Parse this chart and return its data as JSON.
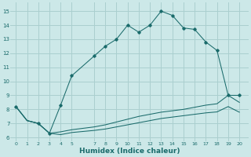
{
  "background_color": "#cce8e8",
  "grid_color": "#aacfcf",
  "line_color": "#1a6b6b",
  "main_x": [
    0,
    1,
    2,
    3,
    4,
    5,
    7,
    8,
    9,
    10,
    11,
    12,
    13,
    14,
    15,
    16,
    17,
    18,
    19,
    20
  ],
  "main_y": [
    8.2,
    7.2,
    7.0,
    6.3,
    8.3,
    10.4,
    11.8,
    12.5,
    13.0,
    14.0,
    13.5,
    14.0,
    15.0,
    14.7,
    13.8,
    13.7,
    12.8,
    12.2,
    9.0,
    9.0
  ],
  "line2_x": [
    0,
    1,
    2,
    3,
    4,
    5,
    7,
    8,
    9,
    10,
    11,
    12,
    13,
    14,
    15,
    16,
    17,
    18,
    19,
    20
  ],
  "line2_y": [
    8.2,
    7.2,
    7.0,
    6.3,
    6.4,
    6.55,
    6.75,
    6.9,
    7.1,
    7.3,
    7.5,
    7.65,
    7.8,
    7.9,
    8.0,
    8.15,
    8.3,
    8.4,
    9.0,
    8.5
  ],
  "line3_x": [
    0,
    1,
    2,
    3,
    4,
    5,
    7,
    8,
    9,
    10,
    11,
    12,
    13,
    14,
    15,
    16,
    17,
    18,
    19,
    20
  ],
  "line3_y": [
    8.2,
    7.2,
    7.0,
    6.3,
    6.2,
    6.35,
    6.5,
    6.6,
    6.75,
    6.9,
    7.05,
    7.2,
    7.35,
    7.45,
    7.55,
    7.65,
    7.75,
    7.82,
    8.2,
    7.8
  ],
  "markers_x": [
    0,
    2,
    3,
    4,
    5,
    7,
    8,
    9,
    10,
    11,
    12,
    13,
    14,
    15,
    16,
    17,
    18,
    19,
    20
  ],
  "markers_y": [
    8.2,
    7.0,
    6.3,
    8.3,
    10.4,
    11.8,
    12.5,
    13.0,
    14.0,
    13.5,
    14.0,
    15.0,
    14.7,
    13.8,
    13.7,
    12.8,
    12.2,
    9.0,
    9.0
  ],
  "xlabel": "Humidex (Indice chaleur)",
  "yticks": [
    6,
    7,
    8,
    9,
    10,
    11,
    12,
    13,
    14,
    15
  ],
  "xtick_labels": [
    "0",
    "1",
    "2",
    "3",
    "4",
    "5",
    "7",
    "8",
    "9",
    "10",
    "11",
    "12",
    "13",
    "14",
    "15",
    "16",
    "17",
    "18",
    "19",
    "20"
  ],
  "xtick_pos": [
    0,
    1,
    2,
    3,
    4,
    5,
    7,
    8,
    9,
    10,
    11,
    12,
    13,
    14,
    15,
    16,
    17,
    18,
    19,
    20
  ],
  "xlim": [
    -0.5,
    20.8
  ],
  "ylim": [
    5.7,
    15.6
  ]
}
